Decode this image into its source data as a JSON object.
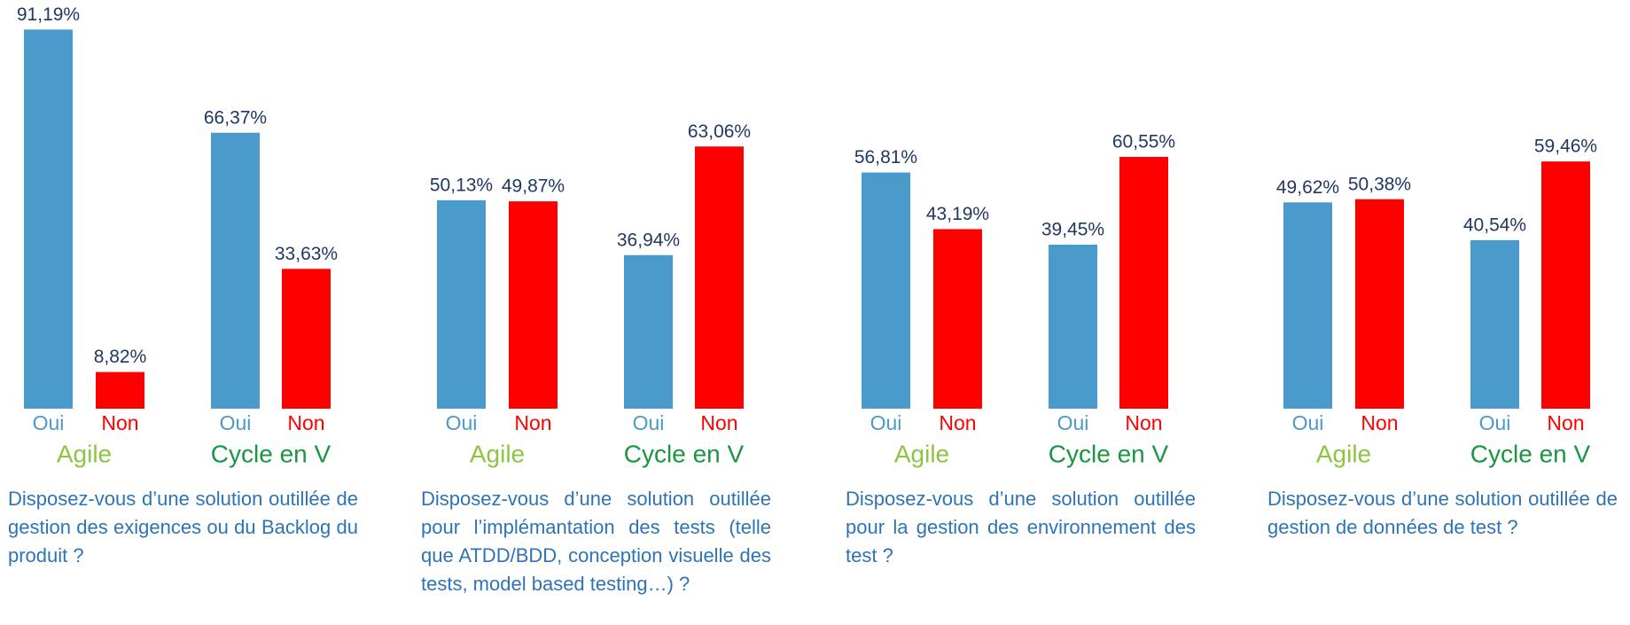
{
  "chart_data": [
    {
      "type": "bar",
      "caption": "Disposez-vous d’une solution outillée de gestion des exigences ou du Backlog du produit ?",
      "ylim": [
        0,
        100
      ],
      "colors": [
        "#4a9acb",
        "#ff0000"
      ],
      "groups": [
        {
          "name": "Agile",
          "categories": [
            "Oui",
            "Non"
          ],
          "values": [
            91.19,
            8.82
          ],
          "value_labels": [
            "91,19%",
            "8,82%"
          ]
        },
        {
          "name": "Cycle en V",
          "categories": [
            "Oui",
            "Non"
          ],
          "values": [
            66.37,
            33.63
          ],
          "value_labels": [
            "66,37%",
            "33,63%"
          ]
        }
      ]
    },
    {
      "type": "bar",
      "caption": "Disposez-vous d’une solution outillée pour l’implémantation des tests (telle que ATDD/BDD, conception visuelle des tests, model based testing…) ?",
      "ylim": [
        0,
        100
      ],
      "colors": [
        "#4a9acb",
        "#ff0000"
      ],
      "groups": [
        {
          "name": "Agile",
          "categories": [
            "Oui",
            "Non"
          ],
          "values": [
            50.13,
            49.87
          ],
          "value_labels": [
            "50,13%",
            "49,87%"
          ]
        },
        {
          "name": "Cycle en V",
          "categories": [
            "Oui",
            "Non"
          ],
          "values": [
            36.94,
            63.06
          ],
          "value_labels": [
            "36,94%",
            "63,06%"
          ]
        }
      ]
    },
    {
      "type": "bar",
      "caption": "Disposez-vous d’une solution outillée pour la gestion des environnement des test ?",
      "ylim": [
        0,
        100
      ],
      "colors": [
        "#4a9acb",
        "#ff0000"
      ],
      "groups": [
        {
          "name": "Agile",
          "categories": [
            "Oui",
            "Non"
          ],
          "values": [
            56.81,
            43.19
          ],
          "value_labels": [
            "56,81%",
            "43,19%"
          ]
        },
        {
          "name": "Cycle en V",
          "categories": [
            "Oui",
            "Non"
          ],
          "values": [
            39.45,
            60.55
          ],
          "value_labels": [
            "39,45%",
            "60,55%"
          ]
        }
      ]
    },
    {
      "type": "bar",
      "caption": "Disposez-vous d’une solution outillée de gestion de données de test ?",
      "ylim": [
        0,
        100
      ],
      "colors": [
        "#4a9acb",
        "#ff0000"
      ],
      "groups": [
        {
          "name": "Agile",
          "categories": [
            "Oui",
            "Non"
          ],
          "values": [
            49.62,
            50.38
          ],
          "value_labels": [
            "49,62%",
            "50,38%"
          ]
        },
        {
          "name": "Cycle en V",
          "categories": [
            "Oui",
            "Non"
          ],
          "values": [
            40.54,
            59.46
          ],
          "value_labels": [
            "40,54%",
            "59,46%"
          ]
        }
      ]
    }
  ]
}
